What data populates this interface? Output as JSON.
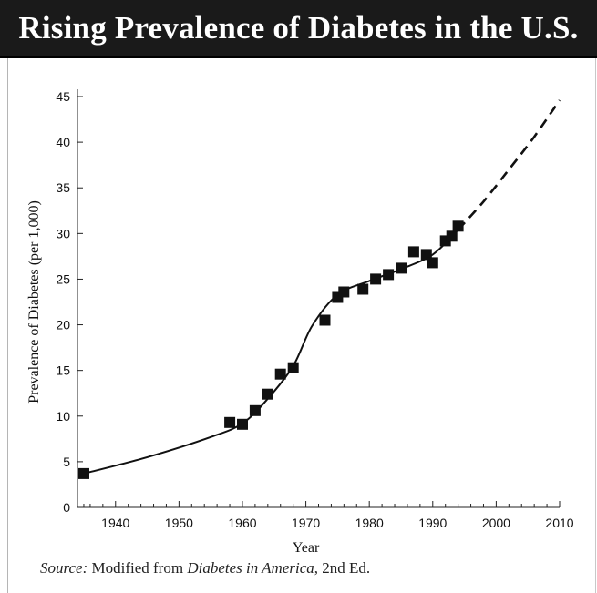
{
  "title": "Rising Prevalence of Diabetes in the U.S.",
  "source": {
    "prefix": "Source:",
    "text_before": " Modified from ",
    "book": "Diabetes in America",
    "text_after": ", 2nd Ed."
  },
  "chart_data": {
    "type": "scatter",
    "title": "Rising Prevalence of Diabetes in the U.S.",
    "xlabel": "Year",
    "ylabel": "Prevalence of Diabetes (per 1,000)",
    "xlim": [
      1934,
      2010
    ],
    "ylim": [
      0,
      45
    ],
    "x_ticks": [
      1940,
      1950,
      1960,
      1970,
      1980,
      1990,
      2000,
      2010
    ],
    "y_ticks": [
      0,
      5,
      10,
      15,
      20,
      25,
      30,
      35,
      40,
      45
    ],
    "grid": false,
    "legend": "none",
    "series": [
      {
        "kind": "points",
        "marker": "square",
        "x": [
          1935,
          1958,
          1960,
          1962,
          1964,
          1966,
          1968,
          1973,
          1975,
          1976,
          1979,
          1981,
          1983,
          1985,
          1987,
          1989,
          1990,
          1992,
          1993,
          1994
        ],
        "y": [
          3.7,
          9.3,
          9.1,
          10.6,
          12.4,
          14.6,
          15.3,
          20.5,
          23.0,
          23.6,
          23.9,
          25.0,
          25.5,
          26.2,
          28.0,
          27.7,
          26.8,
          29.2,
          29.7,
          30.8
        ]
      },
      {
        "kind": "trend",
        "line": "solid",
        "x": [
          1935,
          1945,
          1955,
          1960,
          1964,
          1968,
          1971,
          1975,
          1980,
          1985,
          1990,
          1994
        ],
        "y": [
          3.7,
          5.5,
          7.7,
          9.2,
          11.9,
          15.5,
          19.9,
          23.3,
          24.8,
          26.1,
          27.7,
          30.4
        ]
      },
      {
        "kind": "projection",
        "line": "dashed",
        "x": [
          1994,
          1998,
          2002,
          2006,
          2010
        ],
        "y": [
          30.4,
          33.5,
          37.0,
          40.6,
          44.6
        ]
      }
    ]
  }
}
